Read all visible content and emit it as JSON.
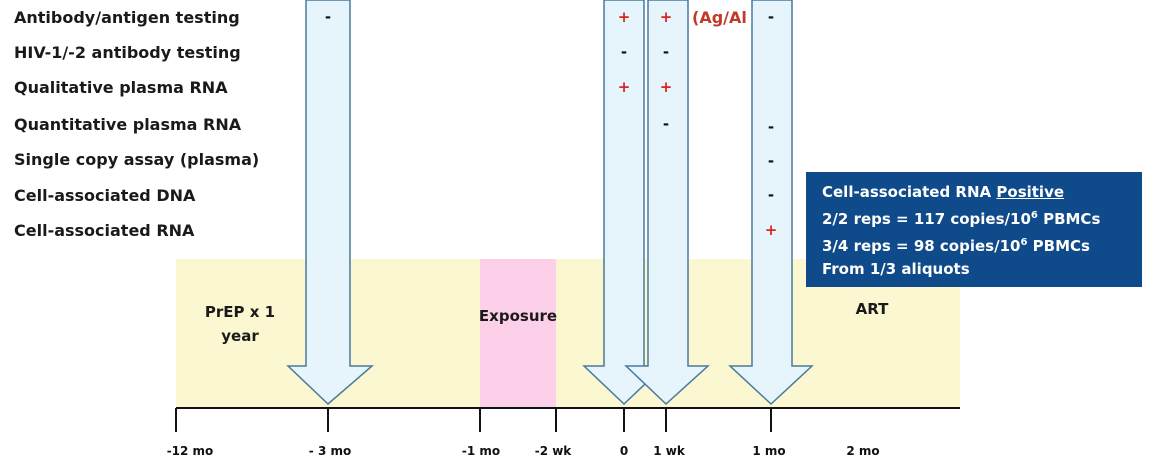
{
  "rows": [
    {
      "label": "Antibody/antigen testing"
    },
    {
      "label": "HIV-1/-2 antibody testing"
    },
    {
      "label": "Qualitative plasma RNA"
    },
    {
      "label": "Quantitative plasma RNA"
    },
    {
      "label": "Single copy assay (plasma)"
    },
    {
      "label": "Cell-associated DNA"
    },
    {
      "label": "Cell-associated RNA"
    }
  ],
  "marks": [
    {
      "col": "-3mo",
      "row": 0,
      "symbol": "-"
    },
    {
      "col": "0",
      "row": 0,
      "symbol": "+"
    },
    {
      "col": "0",
      "row": 1,
      "symbol": "-"
    },
    {
      "col": "0",
      "row": 2,
      "symbol": "+"
    },
    {
      "col": "1wk",
      "row": 0,
      "symbol": "+"
    },
    {
      "col": "1wk",
      "row": 1,
      "symbol": "-"
    },
    {
      "col": "1wk",
      "row": 2,
      "symbol": "+"
    },
    {
      "col": "1wk",
      "row": 3,
      "symbol": "-"
    },
    {
      "col": "1mo",
      "row": 0,
      "symbol": "-"
    },
    {
      "col": "1mo",
      "row": 3,
      "symbol": "-"
    },
    {
      "col": "1mo",
      "row": 4,
      "symbol": "-"
    },
    {
      "col": "1mo",
      "row": 5,
      "symbol": "-"
    },
    {
      "col": "1mo",
      "row": 6,
      "symbol": "+"
    }
  ],
  "ag_note": "(Ag/Al",
  "phases": {
    "prep": [
      "PrEP x 1",
      "year"
    ],
    "exposure": "Exposure",
    "art": "ART"
  },
  "ticks": [
    "-12 mo",
    "- 3 mo",
    "-1 mo",
    "-2 wk",
    "0",
    "1 wk",
    "1 mo",
    "2 mo"
  ],
  "info_box": {
    "title_prefix": "Cell-associated RNA",
    "title_positive": "Positive",
    "line2_pre": "2/2 reps = 117 copies/10",
    "line2_sup": "6",
    "line2_post": " PBMCs",
    "line3_pre": "3/4 reps = 98 copies/10",
    "line3_sup": "6",
    "line3_post": " PBMCs",
    "line4": "From 1/3 aliquots"
  },
  "colors": {
    "timeline_bg": "#fbf7d1",
    "exposure_bg": "#fbd0e8",
    "arrow_fill": "#e6f4fb",
    "arrow_stroke": "#4a7a9a",
    "box_bg": "#0f4a8a",
    "plus": "#d9261c"
  }
}
